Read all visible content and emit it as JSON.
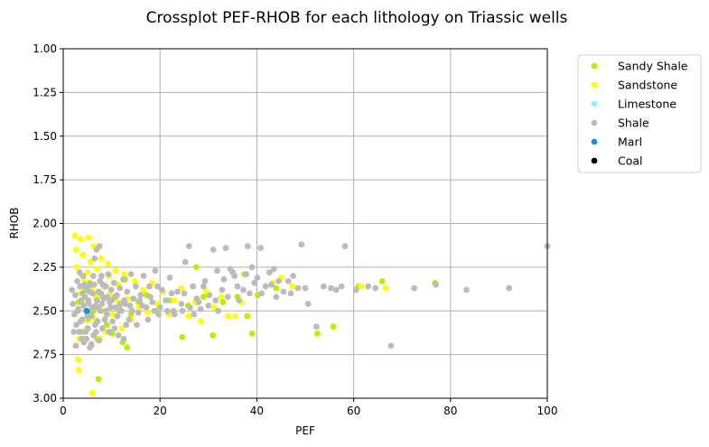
{
  "chart_data": {
    "type": "scatter",
    "title": "Crossplot PEF-RHOB for each lithology on Triassic wells",
    "xlabel": "PEF",
    "ylabel": "RHOB",
    "xlim": [
      0,
      100
    ],
    "ylim": [
      3.0,
      1.0
    ],
    "y_inverted": true,
    "xticks": [
      "0",
      "20",
      "40",
      "60",
      "80",
      "100"
    ],
    "yticks": [
      "1.00",
      "1.25",
      "1.50",
      "1.75",
      "2.00",
      "2.25",
      "2.50",
      "2.75",
      "3.00"
    ],
    "grid": true,
    "legend_position": "outside-right",
    "series": [
      {
        "name": "Sandy Shale",
        "color": "#b5f000",
        "points": [
          [
            3.2,
            2.45
          ],
          [
            3.8,
            2.62
          ],
          [
            4.5,
            2.38
          ],
          [
            5.1,
            2.55
          ],
          [
            5.8,
            2.7
          ],
          [
            6.2,
            2.5
          ],
          [
            7.0,
            2.66
          ],
          [
            7.3,
            2.89
          ],
          [
            8.2,
            2.42
          ],
          [
            9.0,
            2.58
          ],
          [
            10.1,
            2.63
          ],
          [
            11.5,
            2.48
          ],
          [
            12.3,
            2.68
          ],
          [
            13.2,
            2.71
          ],
          [
            14.0,
            2.52
          ],
          [
            15.5,
            2.45
          ],
          [
            17.2,
            2.41
          ],
          [
            19.0,
            2.5
          ],
          [
            22.0,
            2.44
          ],
          [
            24.6,
            2.65
          ],
          [
            25.8,
            2.47
          ],
          [
            27.5,
            2.25
          ],
          [
            29.0,
            2.42
          ],
          [
            30.9,
            2.64
          ],
          [
            33.0,
            2.45
          ],
          [
            36.0,
            2.42
          ],
          [
            37.4,
            2.29
          ],
          [
            38.0,
            2.53
          ],
          [
            39.0,
            2.63
          ],
          [
            40.2,
            2.41
          ],
          [
            44.0,
            2.37
          ],
          [
            52.5,
            2.63
          ],
          [
            55.8,
            2.59
          ],
          [
            61.0,
            2.36
          ],
          [
            65.9,
            2.33
          ],
          [
            76.8,
            2.34
          ],
          [
            4.0,
            2.3
          ],
          [
            5.5,
            2.34
          ],
          [
            8.8,
            2.36
          ],
          [
            12.8,
            2.32
          ]
        ]
      },
      {
        "name": "Sandstone",
        "color": "#ffff00",
        "points": [
          [
            2.4,
            2.07
          ],
          [
            2.6,
            2.15
          ],
          [
            2.8,
            2.25
          ],
          [
            3.0,
            2.78
          ],
          [
            3.2,
            2.84
          ],
          [
            3.3,
            2.66
          ],
          [
            3.6,
            2.09
          ],
          [
            4.0,
            2.18
          ],
          [
            4.3,
            2.32
          ],
          [
            4.6,
            2.46
          ],
          [
            4.9,
            2.6
          ],
          [
            5.2,
            2.08
          ],
          [
            5.6,
            2.22
          ],
          [
            5.9,
            2.38
          ],
          [
            6.3,
            2.13
          ],
          [
            6.6,
            2.55
          ],
          [
            6.0,
            2.97
          ],
          [
            7.0,
            2.26
          ],
          [
            7.4,
            2.48
          ],
          [
            7.8,
            2.2
          ],
          [
            8.3,
            2.36
          ],
          [
            8.8,
            2.62
          ],
          [
            9.2,
            2.23
          ],
          [
            9.7,
            2.41
          ],
          [
            10.2,
            2.52
          ],
          [
            10.8,
            2.27
          ],
          [
            11.4,
            2.35
          ],
          [
            12.0,
            2.6
          ],
          [
            12.6,
            2.29
          ],
          [
            13.3,
            2.43
          ],
          [
            14.0,
            2.55
          ],
          [
            14.8,
            2.33
          ],
          [
            15.6,
            2.48
          ],
          [
            16.5,
            2.38
          ],
          [
            17.4,
            2.51
          ],
          [
            18.3,
            2.34
          ],
          [
            19.4,
            2.46
          ],
          [
            20.5,
            2.39
          ],
          [
            21.8,
            2.52
          ],
          [
            23.0,
            2.44
          ],
          [
            24.4,
            2.37
          ],
          [
            25.9,
            2.53
          ],
          [
            27.2,
            2.45
          ],
          [
            28.4,
            2.56
          ],
          [
            29.5,
            2.39
          ],
          [
            31.2,
            2.48
          ],
          [
            32.6,
            2.42
          ],
          [
            34.0,
            2.53
          ],
          [
            35.5,
            2.53
          ],
          [
            36.8,
            2.45
          ],
          [
            43.2,
            2.34
          ],
          [
            45.0,
            2.31
          ],
          [
            47.3,
            2.36
          ],
          [
            61.5,
            2.36
          ],
          [
            66.6,
            2.37
          ],
          [
            3.5,
            2.4
          ],
          [
            4.2,
            2.55
          ],
          [
            5.0,
            2.28
          ],
          [
            6.8,
            2.42
          ],
          [
            8.0,
            2.5
          ],
          [
            9.5,
            2.3
          ],
          [
            11.0,
            2.44
          ],
          [
            7.6,
            2.66
          ]
        ]
      },
      {
        "name": "Limestone",
        "color": "#8ff0ff",
        "points": []
      },
      {
        "name": "Shale",
        "color": "#bbbbbb",
        "points": [
          [
            1.8,
            2.38
          ],
          [
            2.0,
            2.46
          ],
          [
            2.3,
            2.52
          ],
          [
            2.5,
            2.41
          ],
          [
            2.7,
            2.58
          ],
          [
            2.9,
            2.33
          ],
          [
            3.1,
            2.49
          ],
          [
            3.3,
            2.62
          ],
          [
            3.5,
            2.36
          ],
          [
            3.7,
            2.44
          ],
          [
            3.9,
            2.55
          ],
          [
            4.1,
            2.3
          ],
          [
            4.3,
            2.68
          ],
          [
            4.5,
            2.42
          ],
          [
            4.7,
            2.5
          ],
          [
            4.9,
            2.37
          ],
          [
            5.1,
            2.6
          ],
          [
            5.3,
            2.46
          ],
          [
            5.5,
            2.71
          ],
          [
            5.7,
            2.35
          ],
          [
            5.9,
            2.53
          ],
          [
            6.1,
            2.4
          ],
          [
            6.3,
            2.64
          ],
          [
            6.5,
            2.2
          ],
          [
            6.7,
            2.47
          ],
          [
            6.9,
            2.15
          ],
          [
            7.1,
            2.56
          ],
          [
            7.3,
            2.39
          ],
          [
            7.5,
            2.13
          ],
          [
            7.7,
            2.5
          ],
          [
            7.9,
            2.3
          ],
          [
            8.1,
            2.6
          ],
          [
            8.4,
            2.43
          ],
          [
            8.7,
            2.36
          ],
          [
            9.0,
            2.52
          ],
          [
            9.3,
            2.29
          ],
          [
            9.6,
            2.45
          ],
          [
            9.9,
            2.38
          ],
          [
            10.2,
            2.56
          ],
          [
            10.5,
            2.34
          ],
          [
            10.8,
            2.48
          ],
          [
            11.1,
            2.41
          ],
          [
            11.4,
            2.64
          ],
          [
            11.7,
            2.37
          ],
          [
            12.0,
            2.5
          ],
          [
            12.4,
            2.32
          ],
          [
            12.8,
            2.46
          ],
          [
            13.2,
            2.39
          ],
          [
            13.6,
            2.55
          ],
          [
            14.0,
            2.29
          ],
          [
            14.5,
            2.43
          ],
          [
            15.0,
            2.36
          ],
          [
            15.5,
            2.51
          ],
          [
            16.0,
            2.41
          ],
          [
            16.6,
            2.3
          ],
          [
            17.2,
            2.48
          ],
          [
            17.8,
            2.36
          ],
          [
            18.4,
            2.45
          ],
          [
            19.0,
            2.27
          ],
          [
            19.7,
            2.52
          ],
          [
            20.4,
            2.38
          ],
          [
            21.2,
            2.44
          ],
          [
            22.0,
            2.31
          ],
          [
            22.8,
            2.5
          ],
          [
            23.6,
            2.39
          ],
          [
            24.4,
            2.46
          ],
          [
            25.2,
            2.22
          ],
          [
            26.0,
            2.13
          ],
          [
            26.8,
            2.36
          ],
          [
            27.6,
            2.43
          ],
          [
            28.4,
            2.49
          ],
          [
            29.3,
            2.33
          ],
          [
            30.2,
            2.41
          ],
          [
            31.0,
            2.15
          ],
          [
            31.8,
            2.27
          ],
          [
            32.8,
            2.38
          ],
          [
            33.6,
            2.14
          ],
          [
            34.5,
            2.26
          ],
          [
            35.4,
            2.3
          ],
          [
            36.3,
            2.44
          ],
          [
            37.2,
            2.38
          ],
          [
            38.1,
            2.13
          ],
          [
            39.0,
            2.25
          ],
          [
            40.1,
            2.31
          ],
          [
            40.8,
            2.14
          ],
          [
            41.8,
            2.36
          ],
          [
            42.6,
            2.28
          ],
          [
            43.5,
            2.26
          ],
          [
            44.5,
            2.33
          ],
          [
            45.5,
            2.39
          ],
          [
            46.5,
            2.33
          ],
          [
            47.5,
            2.3
          ],
          [
            48.5,
            2.37
          ],
          [
            49.2,
            2.12
          ],
          [
            50.0,
            2.37
          ],
          [
            50.6,
            2.46
          ],
          [
            52.3,
            2.59
          ],
          [
            53.8,
            2.36
          ],
          [
            55.3,
            2.37
          ],
          [
            56.4,
            2.38
          ],
          [
            57.5,
            2.36
          ],
          [
            58.2,
            2.13
          ],
          [
            60.5,
            2.38
          ],
          [
            63.0,
            2.36
          ],
          [
            64.5,
            2.37
          ],
          [
            67.7,
            2.7
          ],
          [
            72.5,
            2.37
          ],
          [
            77.0,
            2.35
          ],
          [
            83.3,
            2.38
          ],
          [
            92.1,
            2.37
          ],
          [
            100.0,
            2.13
          ],
          [
            2.2,
            2.62
          ],
          [
            2.6,
            2.7
          ],
          [
            3.0,
            2.5
          ],
          [
            3.4,
            2.28
          ],
          [
            3.8,
            2.66
          ],
          [
            4.2,
            2.47
          ],
          [
            4.6,
            2.62
          ],
          [
            5.0,
            2.53
          ],
          [
            5.4,
            2.39
          ],
          [
            5.8,
            2.69
          ],
          [
            6.2,
            2.3
          ],
          [
            6.6,
            2.58
          ],
          [
            7.0,
            2.44
          ],
          [
            7.4,
            2.67
          ],
          [
            7.8,
            2.4
          ],
          [
            8.2,
            2.35
          ],
          [
            8.6,
            2.55
          ],
          [
            9.1,
            2.42
          ],
          [
            9.5,
            2.62
          ],
          [
            10.0,
            2.44
          ],
          [
            10.6,
            2.6
          ],
          [
            11.2,
            2.53
          ],
          [
            11.8,
            2.46
          ],
          [
            12.5,
            2.66
          ],
          [
            13.0,
            2.58
          ],
          [
            14.2,
            2.5
          ],
          [
            15.2,
            2.58
          ],
          [
            16.3,
            2.47
          ],
          [
            17.5,
            2.55
          ],
          [
            18.8,
            2.5
          ],
          [
            20.0,
            2.48
          ],
          [
            21.5,
            2.5
          ],
          [
            23.0,
            2.52
          ],
          [
            24.6,
            2.5
          ],
          [
            26.2,
            2.48
          ],
          [
            28.0,
            2.45
          ],
          [
            30.0,
            2.47
          ],
          [
            32.0,
            2.5
          ],
          [
            34.0,
            2.42
          ],
          [
            36.0,
            2.36
          ],
          [
            38.5,
            2.4
          ],
          [
            41.0,
            2.4
          ],
          [
            44.0,
            2.42
          ],
          [
            47.0,
            2.4
          ],
          [
            3.6,
            2.56
          ],
          [
            4.0,
            2.4
          ],
          [
            4.4,
            2.35
          ],
          [
            4.8,
            2.66
          ],
          [
            5.2,
            2.44
          ],
          [
            5.6,
            2.52
          ],
          [
            6.0,
            2.48
          ],
          [
            6.4,
            2.35
          ],
          [
            6.8,
            2.62
          ],
          [
            7.2,
            2.48
          ],
          [
            7.6,
            2.33
          ],
          [
            8.0,
            2.46
          ],
          [
            8.9,
            2.5
          ],
          [
            9.8,
            2.48
          ],
          [
            10.7,
            2.42
          ],
          [
            11.6,
            2.5
          ],
          [
            12.6,
            2.44
          ],
          [
            13.8,
            2.47
          ],
          [
            15.8,
            2.44
          ],
          [
            18.0,
            2.42
          ],
          [
            19.5,
            2.36
          ],
          [
            22.4,
            2.4
          ],
          [
            25.0,
            2.4
          ],
          [
            27.0,
            2.52
          ],
          [
            29.0,
            2.36
          ],
          [
            31.5,
            2.44
          ],
          [
            33.2,
            2.32
          ],
          [
            35.0,
            2.28
          ],
          [
            37.8,
            2.29
          ],
          [
            39.5,
            2.34
          ],
          [
            43.0,
            2.35
          ]
        ]
      },
      {
        "name": "Marl",
        "color": "#1490e0",
        "points": [
          [
            4.9,
            2.5
          ]
        ]
      },
      {
        "name": "Coal",
        "color": "#000000",
        "points": []
      }
    ]
  }
}
